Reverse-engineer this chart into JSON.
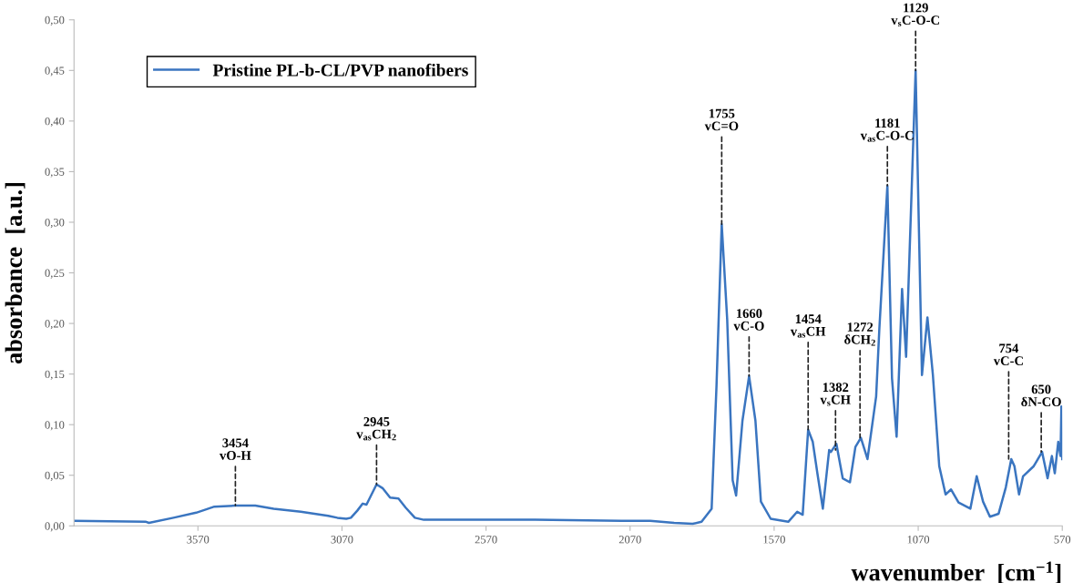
{
  "chart_data": {
    "type": "line",
    "xlabel": "wavenumber  [cm$^{−1}$]",
    "ylabel": "absorbance  [a.u.]",
    "xlim": [
      4000,
      570
    ],
    "xticks": [
      3570,
      3070,
      2570,
      2070,
      1570,
      1070,
      570
    ],
    "ylim": [
      0,
      0.5
    ],
    "yticks": [
      {
        "value": 0,
        "label": "0,00"
      },
      {
        "value": 0.05,
        "label": "0,05"
      },
      {
        "value": 0.1,
        "label": "0,10"
      },
      {
        "value": 0.15,
        "label": "0,15"
      },
      {
        "value": 0.2,
        "label": "0,20"
      },
      {
        "value": 0.25,
        "label": "0,25"
      },
      {
        "value": 0.3,
        "label": "0,30"
      },
      {
        "value": 0.35,
        "label": "0,35"
      },
      {
        "value": 0.4,
        "label": "0,40"
      },
      {
        "value": 0.45,
        "label": "0,45"
      },
      {
        "value": 0.5,
        "label": "0,50"
      }
    ],
    "grid": false,
    "legend": "top left",
    "marker": "none",
    "line_style": "solid",
    "series": [
      {
        "name": "Pristine PL-b-CL/PVP nanofibers",
        "color": "#3a75c0",
        "x": [
          4000,
          3750,
          3740,
          3655,
          3576,
          3513,
          3440,
          3371,
          3307,
          3213,
          3118,
          3086,
          3055,
          3039,
          3017,
          2998,
          2985,
          2950,
          2928,
          2903,
          2874,
          2849,
          2817,
          2786,
          2700,
          2400,
          2100,
          2000,
          1917,
          1853,
          1822,
          1787,
          1770,
          1752,
          1733,
          1714,
          1702,
          1680,
          1657,
          1635,
          1616,
          1582,
          1521,
          1490,
          1471,
          1452,
          1436,
          1420,
          1401,
          1379,
          1373,
          1354,
          1332,
          1307,
          1288,
          1269,
          1246,
          1216,
          1205,
          1177,
          1161,
          1145,
          1126,
          1112,
          1079,
          1057,
          1038,
          1019,
          997,
          975,
          956,
          930,
          889,
          867,
          845,
          821,
          791,
          766,
          747,
          736,
          720,
          706,
          669,
          640,
          621,
          606,
          596,
          584,
          576,
          573,
          570
        ],
        "values": [
          0.005,
          0.004,
          0.003,
          0.008,
          0.013,
          0.019,
          0.02,
          0.02,
          0.017,
          0.014,
          0.01,
          0.008,
          0.007,
          0.008,
          0.015,
          0.022,
          0.021,
          0.041,
          0.037,
          0.028,
          0.027,
          0.018,
          0.008,
          0.006,
          0.006,
          0.006,
          0.005,
          0.005,
          0.003,
          0.002,
          0.004,
          0.017,
          0.139,
          0.298,
          0.204,
          0.045,
          0.03,
          0.104,
          0.148,
          0.104,
          0.024,
          0.007,
          0.004,
          0.014,
          0.011,
          0.095,
          0.083,
          0.052,
          0.017,
          0.075,
          0.073,
          0.081,
          0.047,
          0.043,
          0.078,
          0.087,
          0.066,
          0.128,
          0.194,
          0.336,
          0.146,
          0.088,
          0.234,
          0.167,
          0.45,
          0.149,
          0.206,
          0.149,
          0.059,
          0.031,
          0.036,
          0.023,
          0.017,
          0.049,
          0.024,
          0.009,
          0.012,
          0.038,
          0.066,
          0.059,
          0.031,
          0.049,
          0.059,
          0.073,
          0.047,
          0.069,
          0.052,
          0.083,
          0.069,
          0.118,
          0.066
        ]
      }
    ],
    "annotations": [
      {
        "text": "3454\nvO-H",
        "x": 3440,
        "y": 0.02
      },
      {
        "text": "2945\nv$_{as}$CH$_{2}$",
        "x": 2950,
        "y": 0.041
      },
      {
        "text": "1755\nvC=O",
        "x": 1752,
        "y": 0.298
      },
      {
        "text": "1660\nvC-O",
        "x": 1657,
        "y": 0.148
      },
      {
        "text": "1454\nv$_{as}$CH",
        "x": 1452,
        "y": 0.095
      },
      {
        "text": "1382\nv$_{s}$CH",
        "x": 1357,
        "y": 0.075
      },
      {
        "text": "1272\nδCH$_{2}$",
        "x": 1272,
        "y": 0.087
      },
      {
        "text": "1181\nv$_{as}$C-O-C",
        "x": 1177,
        "y": 0.336
      },
      {
        "text": "1129\nv$_{s}$C-O-C",
        "x": 1079,
        "y": 0.45
      },
      {
        "text": "754\nvC-C",
        "x": 756,
        "y": 0.066
      },
      {
        "text": "650\nδN-CO",
        "x": 643,
        "y": 0.073
      }
    ]
  }
}
